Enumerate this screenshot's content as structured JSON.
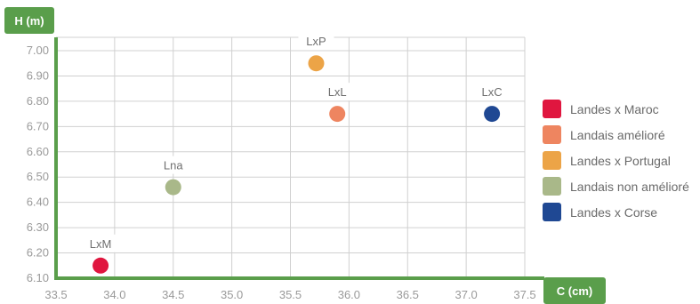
{
  "chart_data": {
    "type": "scatter",
    "xlabel": "C (cm)",
    "ylabel": "H (m)",
    "xlim": [
      33.5,
      37.5
    ],
    "ylim": [
      6.1,
      7.0
    ],
    "x_ticks": [
      "33.5",
      "34.0",
      "34.5",
      "35.0",
      "35.5",
      "36.0",
      "36.5",
      "37.0",
      "37.5"
    ],
    "y_ticks": [
      "7.00",
      "6.90",
      "6.80",
      "6.70",
      "6.60",
      "6.50",
      "6.40",
      "6.30",
      "6.20",
      "6.10"
    ],
    "grid": true,
    "legend_position": "right",
    "points": [
      {
        "label": "LxM",
        "series": "Landes x Maroc",
        "x": 33.88,
        "y": 6.15,
        "color": "#e0163f"
      },
      {
        "label": "LxL",
        "series": "Landais amélioré",
        "x": 35.9,
        "y": 6.75,
        "color": "#ee8560"
      },
      {
        "label": "LxP",
        "series": "Landes x Portugal",
        "x": 35.72,
        "y": 6.95,
        "color": "#eca447"
      },
      {
        "label": "Lna",
        "series": "Landais non amélioré",
        "x": 34.5,
        "y": 6.46,
        "color": "#a9b889"
      },
      {
        "label": "LxC",
        "series": "Landes x Corse",
        "x": 37.22,
        "y": 6.75,
        "color": "#1f4893"
      }
    ],
    "legend": [
      {
        "name": "Landes x Maroc",
        "color": "#e0163f"
      },
      {
        "name": "Landais amélioré",
        "color": "#ee8560"
      },
      {
        "name": "Landes x Portugal",
        "color": "#eca447"
      },
      {
        "name": "Landais non amélioré",
        "color": "#a9b889"
      },
      {
        "name": "Landes x Corse",
        "color": "#1f4893"
      }
    ]
  },
  "colors": {
    "axis": "#5a9e4b",
    "grid": "#d0d0d0"
  }
}
